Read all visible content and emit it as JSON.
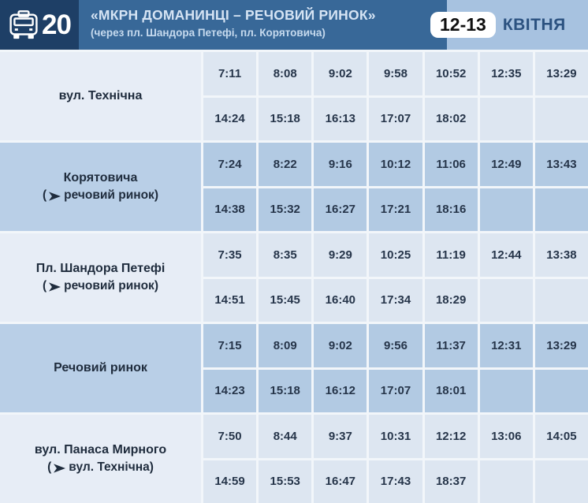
{
  "header": {
    "route_number": "20",
    "title": "«МКРН ДОМАНИНЦІ – РЕЧОВИЙ РИНОК»",
    "subtitle": "(через пл. Шандора Петефі, пл. Корятовича)",
    "date": {
      "days": "12-13",
      "month": "КВІТНЯ"
    }
  },
  "icons": {
    "route_badge": "bus-icon",
    "direction": "arrowhead-right-icon"
  },
  "colors": {
    "navy": "#1e3f66",
    "header-blue": "#386898",
    "header-light": "#a7c2e0",
    "title-text": "#d6e4f4",
    "subtitle-text": "#c6daee",
    "month-text": "#2c5280",
    "pill-bg": "#ffffff",
    "pill-text": "#101010",
    "grid": "#f2f6fa",
    "light-label": "#e7edf6",
    "light-cell": "#dde6f1",
    "medium-label": "#b9cfe7",
    "medium-cell": "#b2cae3",
    "stop-text": "#1f2c3d",
    "time-text": "#26354a"
  },
  "timetable": {
    "stops": [
      {
        "name": "вул. Технічна",
        "direction": null,
        "row1": [
          "7:11",
          "8:08",
          "9:02",
          "9:58",
          "10:52",
          "12:35",
          "13:29"
        ],
        "row2": [
          "14:24",
          "15:18",
          "16:13",
          "17:07",
          "18:02",
          "",
          ""
        ]
      },
      {
        "name": "Корятовича",
        "direction": {
          "open": "(",
          "text": "речовий ринок)"
        },
        "row1": [
          "7:24",
          "8:22",
          "9:16",
          "10:12",
          "11:06",
          "12:49",
          "13:43"
        ],
        "row2": [
          "14:38",
          "15:32",
          "16:27",
          "17:21",
          "18:16",
          "",
          ""
        ]
      },
      {
        "name": "Пл. Шандора Петефі",
        "direction": {
          "open": "(",
          "text": "речовий ринок)"
        },
        "row1": [
          "7:35",
          "8:35",
          "9:29",
          "10:25",
          "11:19",
          "12:44",
          "13:38"
        ],
        "row2": [
          "14:51",
          "15:45",
          "16:40",
          "17:34",
          "18:29",
          "",
          ""
        ]
      },
      {
        "name": "Речовий ринок",
        "direction": null,
        "row1": [
          "7:15",
          "8:09",
          "9:02",
          "9:56",
          "11:37",
          "12:31",
          "13:29"
        ],
        "row2": [
          "14:23",
          "15:18",
          "16:12",
          "17:07",
          "18:01",
          "",
          ""
        ]
      },
      {
        "name": "вул. Панаса Мирного",
        "direction": {
          "open": "(",
          "text": "вул. Технічна)"
        },
        "row1": [
          "7:50",
          "8:44",
          "9:37",
          "10:31",
          "12:12",
          "13:06",
          "14:05"
        ],
        "row2": [
          "14:59",
          "15:53",
          "16:47",
          "17:43",
          "18:37",
          "",
          ""
        ]
      }
    ]
  }
}
